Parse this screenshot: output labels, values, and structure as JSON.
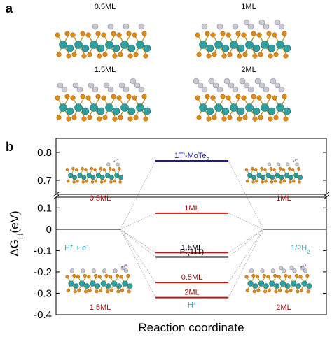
{
  "panel_a": {
    "letter": "a",
    "structures": [
      {
        "label": "0.5ML",
        "coverage": 0.5
      },
      {
        "label": "1ML",
        "coverage": 1.0
      },
      {
        "label": "1.5ML",
        "coverage": 1.5
      },
      {
        "label": "2ML",
        "coverage": 2.0
      }
    ]
  },
  "panel_b": {
    "letter": "b",
    "inset_labels": {
      "top_left": "0.5ML",
      "top_right": "1ML",
      "bottom_left": "1.5ML",
      "bottom_right": "2ML"
    },
    "left_state": {
      "pre": "H",
      "sup1": "+",
      "mid": " + e",
      "sup2": "-"
    },
    "right_state": {
      "pre": "1/2H",
      "sub": "2"
    },
    "xlabel": "Reaction coordinate",
    "ylabel": {
      "base": "ΔG",
      "sub": "H",
      "unit": "(eV)"
    }
  },
  "colors": {
    "mote2_line": "#1a1aaa",
    "ml_line": "#cc1111",
    "pt_line": "#000000",
    "label_dark": "#000000",
    "label_blue": "#2a6fd0",
    "label_red": "#991111",
    "label_cyan": "#3aa5c8",
    "te": "#e08a14",
    "mo": "#2f9e9e",
    "h": "#c8c8d2"
  },
  "chart_data": {
    "type": "energy-level diagram",
    "ylim_upper": [
      0.65,
      0.85
    ],
    "ylim_lower": [
      -0.4,
      0.15
    ],
    "yticks_upper": [
      {
        "value": 0.7,
        "label": "0.7"
      },
      {
        "value": 0.8,
        "label": "0.8"
      }
    ],
    "yticks_lower": [
      {
        "value": -0.4,
        "label": "-0.4"
      },
      {
        "value": -0.3,
        "label": "-0.3"
      },
      {
        "value": -0.2,
        "label": "-0.2"
      },
      {
        "value": -0.1,
        "label": "-0.1"
      },
      {
        "value": 0,
        "label": "0"
      },
      {
        "value": 0.1,
        "label": "0.1"
      }
    ],
    "levels": [
      {
        "label": "1T'-MoTe",
        "sub": "2",
        "value": 0.77,
        "color": "#1a1aaa",
        "label_color": "#1a1aaa"
      },
      {
        "label": "1ML",
        "value": 0.075,
        "color": "#cc1111",
        "label_color": "#991111"
      },
      {
        "label": "1.5ML",
        "value": -0.11,
        "color": "#cc1111",
        "label_color": "#000000"
      },
      {
        "label": "Pt(111)",
        "value": -0.13,
        "color": "#000000",
        "label_color": "#000000"
      },
      {
        "label": "0.5ML",
        "value": -0.25,
        "color": "#cc1111",
        "label_color": "#991111"
      },
      {
        "label": "2ML",
        "value": -0.32,
        "color": "#cc1111",
        "label_color": "#991111"
      }
    ],
    "zero_level_label": "H*",
    "zero_level_label_value": -0.35
  }
}
